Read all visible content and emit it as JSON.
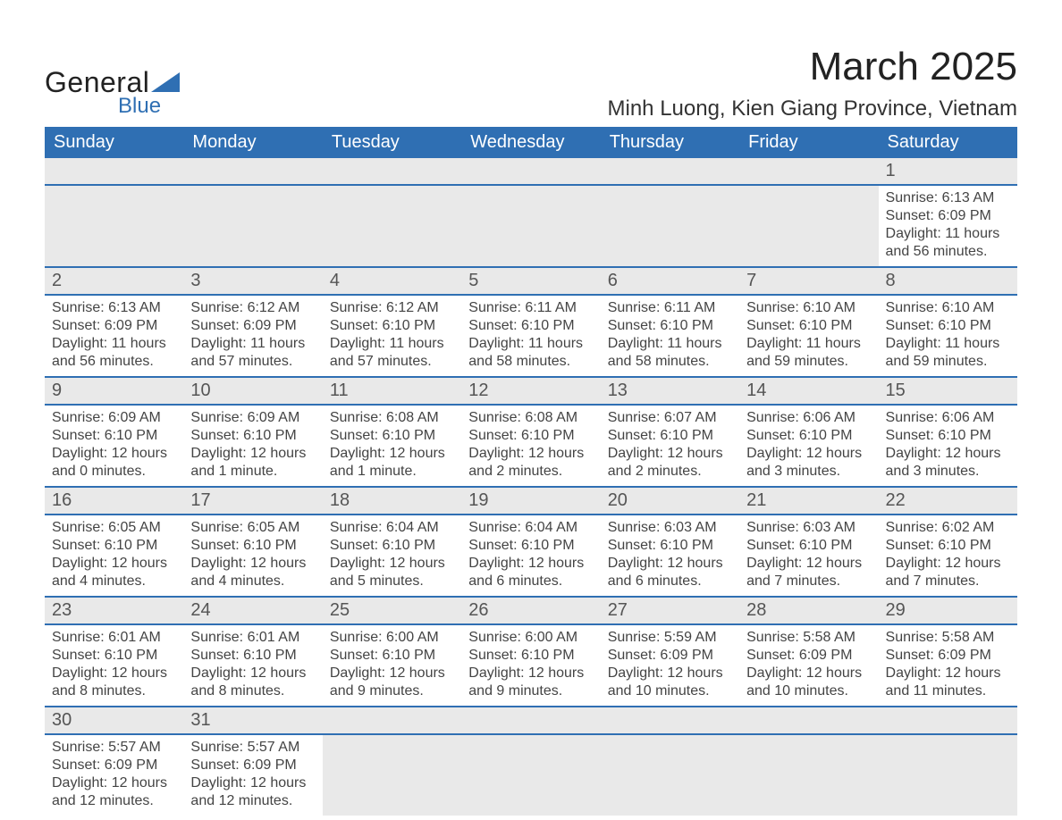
{
  "logo": {
    "line1": "General",
    "line2": "Blue"
  },
  "title": "March 2025",
  "location": "Minh Luong, Kien Giang Province, Vietnam",
  "colors": {
    "header_bg": "#2f6fb3",
    "header_text": "#ffffff",
    "daynum_bg": "#e9e9e9",
    "row_divider": "#2f6fb3",
    "text": "#444444",
    "logo_accent": "#2f6fb3"
  },
  "typography": {
    "title_fontsize": 44,
    "location_fontsize": 24,
    "header_fontsize": 20,
    "daynum_fontsize": 20,
    "detail_fontsize": 16
  },
  "layout": {
    "columns": 7,
    "week_rows": 6
  },
  "weekdays": [
    "Sunday",
    "Monday",
    "Tuesday",
    "Wednesday",
    "Thursday",
    "Friday",
    "Saturday"
  ],
  "weeks": [
    [
      null,
      null,
      null,
      null,
      null,
      null,
      {
        "n": "1",
        "sr": "Sunrise: 6:13 AM",
        "ss": "Sunset: 6:09 PM",
        "d1": "Daylight: 11 hours",
        "d2": "and 56 minutes."
      }
    ],
    [
      {
        "n": "2",
        "sr": "Sunrise: 6:13 AM",
        "ss": "Sunset: 6:09 PM",
        "d1": "Daylight: 11 hours",
        "d2": "and 56 minutes."
      },
      {
        "n": "3",
        "sr": "Sunrise: 6:12 AM",
        "ss": "Sunset: 6:09 PM",
        "d1": "Daylight: 11 hours",
        "d2": "and 57 minutes."
      },
      {
        "n": "4",
        "sr": "Sunrise: 6:12 AM",
        "ss": "Sunset: 6:10 PM",
        "d1": "Daylight: 11 hours",
        "d2": "and 57 minutes."
      },
      {
        "n": "5",
        "sr": "Sunrise: 6:11 AM",
        "ss": "Sunset: 6:10 PM",
        "d1": "Daylight: 11 hours",
        "d2": "and 58 minutes."
      },
      {
        "n": "6",
        "sr": "Sunrise: 6:11 AM",
        "ss": "Sunset: 6:10 PM",
        "d1": "Daylight: 11 hours",
        "d2": "and 58 minutes."
      },
      {
        "n": "7",
        "sr": "Sunrise: 6:10 AM",
        "ss": "Sunset: 6:10 PM",
        "d1": "Daylight: 11 hours",
        "d2": "and 59 minutes."
      },
      {
        "n": "8",
        "sr": "Sunrise: 6:10 AM",
        "ss": "Sunset: 6:10 PM",
        "d1": "Daylight: 11 hours",
        "d2": "and 59 minutes."
      }
    ],
    [
      {
        "n": "9",
        "sr": "Sunrise: 6:09 AM",
        "ss": "Sunset: 6:10 PM",
        "d1": "Daylight: 12 hours",
        "d2": "and 0 minutes."
      },
      {
        "n": "10",
        "sr": "Sunrise: 6:09 AM",
        "ss": "Sunset: 6:10 PM",
        "d1": "Daylight: 12 hours",
        "d2": "and 1 minute."
      },
      {
        "n": "11",
        "sr": "Sunrise: 6:08 AM",
        "ss": "Sunset: 6:10 PM",
        "d1": "Daylight: 12 hours",
        "d2": "and 1 minute."
      },
      {
        "n": "12",
        "sr": "Sunrise: 6:08 AM",
        "ss": "Sunset: 6:10 PM",
        "d1": "Daylight: 12 hours",
        "d2": "and 2 minutes."
      },
      {
        "n": "13",
        "sr": "Sunrise: 6:07 AM",
        "ss": "Sunset: 6:10 PM",
        "d1": "Daylight: 12 hours",
        "d2": "and 2 minutes."
      },
      {
        "n": "14",
        "sr": "Sunrise: 6:06 AM",
        "ss": "Sunset: 6:10 PM",
        "d1": "Daylight: 12 hours",
        "d2": "and 3 minutes."
      },
      {
        "n": "15",
        "sr": "Sunrise: 6:06 AM",
        "ss": "Sunset: 6:10 PM",
        "d1": "Daylight: 12 hours",
        "d2": "and 3 minutes."
      }
    ],
    [
      {
        "n": "16",
        "sr": "Sunrise: 6:05 AM",
        "ss": "Sunset: 6:10 PM",
        "d1": "Daylight: 12 hours",
        "d2": "and 4 minutes."
      },
      {
        "n": "17",
        "sr": "Sunrise: 6:05 AM",
        "ss": "Sunset: 6:10 PM",
        "d1": "Daylight: 12 hours",
        "d2": "and 4 minutes."
      },
      {
        "n": "18",
        "sr": "Sunrise: 6:04 AM",
        "ss": "Sunset: 6:10 PM",
        "d1": "Daylight: 12 hours",
        "d2": "and 5 minutes."
      },
      {
        "n": "19",
        "sr": "Sunrise: 6:04 AM",
        "ss": "Sunset: 6:10 PM",
        "d1": "Daylight: 12 hours",
        "d2": "and 6 minutes."
      },
      {
        "n": "20",
        "sr": "Sunrise: 6:03 AM",
        "ss": "Sunset: 6:10 PM",
        "d1": "Daylight: 12 hours",
        "d2": "and 6 minutes."
      },
      {
        "n": "21",
        "sr": "Sunrise: 6:03 AM",
        "ss": "Sunset: 6:10 PM",
        "d1": "Daylight: 12 hours",
        "d2": "and 7 minutes."
      },
      {
        "n": "22",
        "sr": "Sunrise: 6:02 AM",
        "ss": "Sunset: 6:10 PM",
        "d1": "Daylight: 12 hours",
        "d2": "and 7 minutes."
      }
    ],
    [
      {
        "n": "23",
        "sr": "Sunrise: 6:01 AM",
        "ss": "Sunset: 6:10 PM",
        "d1": "Daylight: 12 hours",
        "d2": "and 8 minutes."
      },
      {
        "n": "24",
        "sr": "Sunrise: 6:01 AM",
        "ss": "Sunset: 6:10 PM",
        "d1": "Daylight: 12 hours",
        "d2": "and 8 minutes."
      },
      {
        "n": "25",
        "sr": "Sunrise: 6:00 AM",
        "ss": "Sunset: 6:10 PM",
        "d1": "Daylight: 12 hours",
        "d2": "and 9 minutes."
      },
      {
        "n": "26",
        "sr": "Sunrise: 6:00 AM",
        "ss": "Sunset: 6:10 PM",
        "d1": "Daylight: 12 hours",
        "d2": "and 9 minutes."
      },
      {
        "n": "27",
        "sr": "Sunrise: 5:59 AM",
        "ss": "Sunset: 6:09 PM",
        "d1": "Daylight: 12 hours",
        "d2": "and 10 minutes."
      },
      {
        "n": "28",
        "sr": "Sunrise: 5:58 AM",
        "ss": "Sunset: 6:09 PM",
        "d1": "Daylight: 12 hours",
        "d2": "and 10 minutes."
      },
      {
        "n": "29",
        "sr": "Sunrise: 5:58 AM",
        "ss": "Sunset: 6:09 PM",
        "d1": "Daylight: 12 hours",
        "d2": "and 11 minutes."
      }
    ],
    [
      {
        "n": "30",
        "sr": "Sunrise: 5:57 AM",
        "ss": "Sunset: 6:09 PM",
        "d1": "Daylight: 12 hours",
        "d2": "and 12 minutes."
      },
      {
        "n": "31",
        "sr": "Sunrise: 5:57 AM",
        "ss": "Sunset: 6:09 PM",
        "d1": "Daylight: 12 hours",
        "d2": "and 12 minutes."
      },
      null,
      null,
      null,
      null,
      null
    ]
  ]
}
